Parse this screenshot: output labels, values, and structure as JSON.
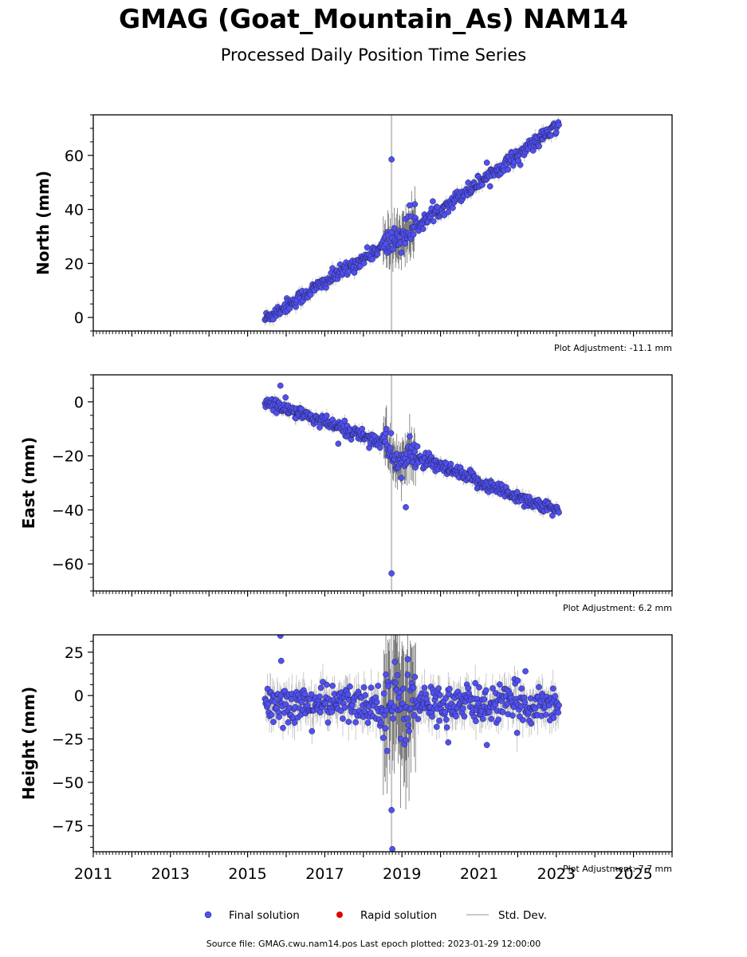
{
  "chart_data": [
    {
      "type": "scatter",
      "ylabel": "North (mm)",
      "xlim": [
        2011,
        2026
      ],
      "ylim": [
        -5,
        75
      ],
      "y_ticks": [
        0,
        20,
        40,
        60
      ],
      "adjustment_label": "Plot Adjustment: -11.1 mm",
      "trend": [
        [
          2015.45,
          -0.5
        ],
        [
          2018.6,
          27
        ],
        [
          2019.2,
          32
        ],
        [
          2023.08,
          71
        ]
      ],
      "scatter_sd": 1.3,
      "outliers": [
        [
          2018.73,
          58.5
        ],
        [
          2019.2,
          41.5
        ],
        [
          2021.2,
          57.3
        ]
      ],
      "color": "#5050f0"
    },
    {
      "type": "scatter",
      "ylabel": "East (mm)",
      "xlim": [
        2011,
        2026
      ],
      "ylim": [
        -70,
        10
      ],
      "y_ticks": [
        -60,
        -40,
        -20,
        0
      ],
      "adjustment_label": "Plot Adjustment: 6.2 mm",
      "trend": [
        [
          2015.45,
          0
        ],
        [
          2018.6,
          -15.5
        ],
        [
          2018.9,
          -23
        ],
        [
          2019.25,
          -20
        ],
        [
          2023.08,
          -41
        ]
      ],
      "scatter_sd": 1.3,
      "outliers": [
        [
          2015.85,
          6
        ],
        [
          2018.73,
          -63.5
        ],
        [
          2019.1,
          -39
        ],
        [
          2017.35,
          -15.5
        ],
        [
          2019.4,
          -16.5
        ]
      ],
      "color": "#5050f0"
    },
    {
      "type": "scatter",
      "ylabel": "Height (mm)",
      "xlim": [
        2011,
        2026
      ],
      "ylim": [
        -90,
        35
      ],
      "y_ticks": [
        -75,
        -50,
        -25,
        0,
        25
      ],
      "adjustment_label": "Plot Adjustment: 7.7 mm",
      "trend": [
        [
          2015.45,
          -5
        ],
        [
          2023.08,
          -5
        ]
      ],
      "scatter_sd": 5.5,
      "outliers": [
        [
          2015.85,
          34.5
        ],
        [
          2015.87,
          20
        ],
        [
          2018.73,
          -66
        ],
        [
          2018.75,
          -88.5
        ],
        [
          2021.2,
          -28.5
        ],
        [
          2022.2,
          14
        ],
        [
          2020.2,
          -27
        ],
        [
          2019.15,
          12
        ]
      ],
      "color": "#5050f0"
    }
  ],
  "x_axis": {
    "tick_labels": [
      "2011",
      "2013",
      "2015",
      "2017",
      "2019",
      "2021",
      "2023",
      "2025"
    ]
  },
  "title": "GMAG (Goat_Mountain_As) NAM14",
  "subtitle": "Processed Daily Position Time Series",
  "legend": {
    "final": "Final solution",
    "rapid": "Rapid solution",
    "std": "Std. Dev."
  },
  "colors": {
    "final": "#5050f0",
    "rapid": "#e00000",
    "std": "#c8c8c8"
  },
  "source_line": "Source file: GMAG.cwu.nam14.pos  Last epoch plotted: 2023-01-29 12:00:00"
}
